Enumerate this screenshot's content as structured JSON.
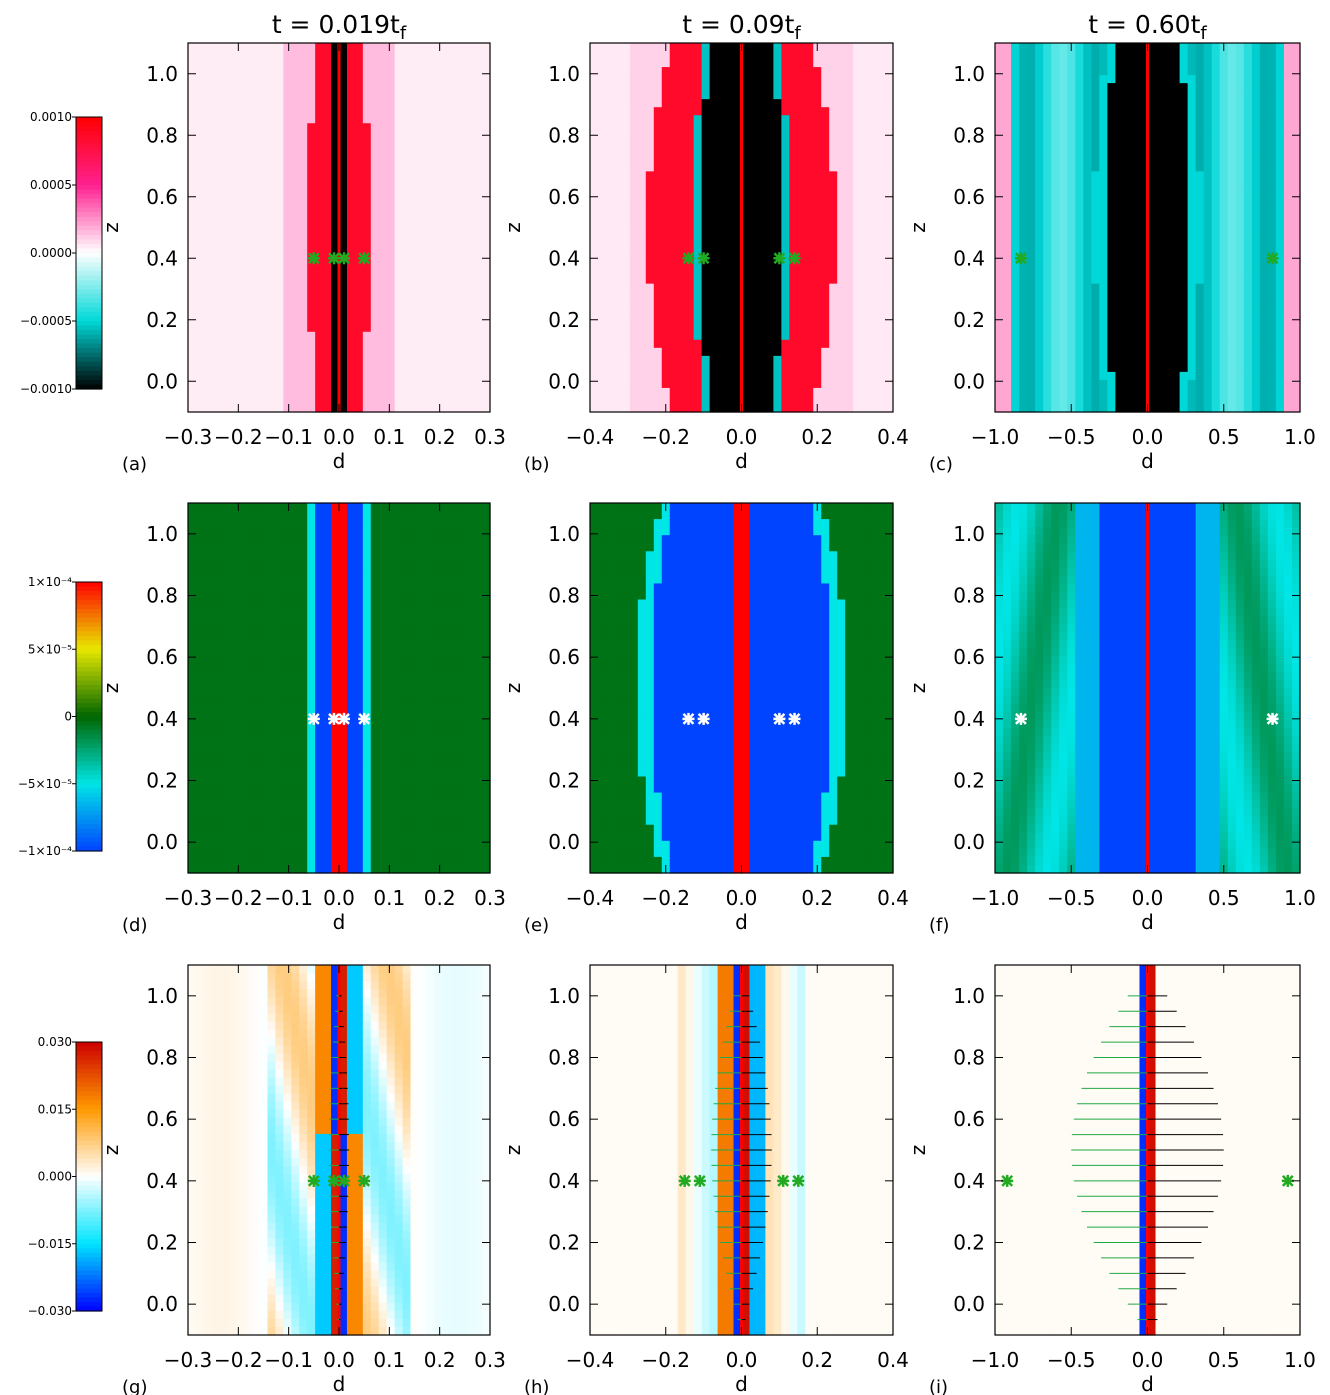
{
  "chart_data": {
    "type": "heatmap",
    "column_titles": [
      {
        "lead": "t = 0.019t",
        "sub": "f"
      },
      {
        "lead": "t = 0.09t",
        "sub": "f"
      },
      {
        "lead": "t = 0.60t",
        "sub": "f"
      }
    ],
    "colorbars": [
      {
        "colormap": "black-cyan-white-pink-red",
        "colors": [
          "#000000",
          "#00d8d8",
          "#ffffff",
          "#ff2090",
          "#ff0000"
        ],
        "range": [
          -0.001,
          0.001
        ],
        "tick_values": [
          0.001,
          0.0005,
          0.0,
          -0.0005,
          -0.001
        ],
        "tick_labels": [
          "0.0010",
          "0.0005",
          "0.0000",
          "−0.0005",
          "−0.0010"
        ]
      },
      {
        "colormap": "blue-cyan-green-yellow-red",
        "colors": [
          "#0044ff",
          "#00e5e5",
          "#006600",
          "#e8e800",
          "#ff0000"
        ],
        "range": [
          -0.0001,
          0.0001
        ],
        "tick_values": [
          0.0001,
          5e-05,
          0,
          -5e-05,
          -0.0001
        ],
        "tick_labels": [
          "1×10⁻⁴",
          "5×10⁻⁵",
          "0",
          "−5×10⁻⁵",
          "−1×10⁻⁴"
        ]
      },
      {
        "colormap": "blue-cyan-white-orange-red",
        "colors": [
          "#0000ff",
          "#00e5ff",
          "#ffffff",
          "#ff9a00",
          "#cc0000"
        ],
        "range": [
          -0.03,
          0.03
        ],
        "tick_values": [
          0.03,
          0.015,
          0.0,
          -0.015,
          -0.03
        ],
        "tick_labels": [
          "0.030",
          "0.015",
          "0.000",
          "−0.015",
          "−0.030"
        ]
      }
    ],
    "panels": [
      {
        "tag": "(a)",
        "row": 0,
        "col": 0,
        "xlim": [
          -0.3,
          0.3
        ],
        "ylim": [
          -0.1,
          1.1
        ],
        "xticks": [
          -0.3,
          -0.2,
          -0.1,
          0.0,
          0.1,
          0.2,
          0.3
        ],
        "yticks": [
          0.0,
          0.2,
          0.4,
          0.6,
          0.8,
          1.0
        ],
        "xlabel": "d",
        "ylabel": "z",
        "marker_x": [
          -0.05,
          -0.01,
          0.01,
          0.05
        ],
        "marker_z": 0.4
      },
      {
        "tag": "(b)",
        "row": 0,
        "col": 1,
        "xlim": [
          -0.4,
          0.4
        ],
        "ylim": [
          -0.1,
          1.1
        ],
        "xticks": [
          -0.4,
          -0.2,
          0.0,
          0.2,
          0.4
        ],
        "yticks": [
          0.0,
          0.2,
          0.4,
          0.6,
          0.8,
          1.0
        ],
        "xlabel": "d",
        "ylabel": "z",
        "marker_x": [
          -0.14,
          -0.1,
          0.1,
          0.14
        ],
        "marker_z": 0.4
      },
      {
        "tag": "(c)",
        "row": 0,
        "col": 2,
        "xlim": [
          -1.0,
          1.0
        ],
        "ylim": [
          -0.1,
          1.1
        ],
        "xticks": [
          -1.0,
          -0.5,
          0.0,
          0.5,
          1.0
        ],
        "yticks": [
          0.0,
          0.2,
          0.4,
          0.6,
          0.8,
          1.0
        ],
        "xlabel": "d",
        "ylabel": "z",
        "marker_x": [
          -0.83,
          0.82
        ],
        "marker_z": 0.4
      },
      {
        "tag": "(d)",
        "row": 1,
        "col": 0,
        "xlim": [
          -0.3,
          0.3
        ],
        "ylim": [
          -0.1,
          1.1
        ],
        "xticks": [
          -0.3,
          -0.2,
          -0.1,
          0.0,
          0.1,
          0.2,
          0.3
        ],
        "yticks": [
          0.0,
          0.2,
          0.4,
          0.6,
          0.8,
          1.0
        ],
        "xlabel": "d",
        "ylabel": "z",
        "marker_x": [
          -0.05,
          -0.01,
          0.01,
          0.05
        ],
        "marker_z": 0.4
      },
      {
        "tag": "(e)",
        "row": 1,
        "col": 1,
        "xlim": [
          -0.4,
          0.4
        ],
        "ylim": [
          -0.1,
          1.1
        ],
        "xticks": [
          -0.4,
          -0.2,
          0.0,
          0.2,
          0.4
        ],
        "yticks": [
          0.0,
          0.2,
          0.4,
          0.6,
          0.8,
          1.0
        ],
        "xlabel": "d",
        "ylabel": "z",
        "marker_x": [
          -0.14,
          -0.1,
          0.1,
          0.14
        ],
        "marker_z": 0.4
      },
      {
        "tag": "(f)",
        "row": 1,
        "col": 2,
        "xlim": [
          -1.0,
          1.0
        ],
        "ylim": [
          -0.1,
          1.1
        ],
        "xticks": [
          -1.0,
          -0.5,
          0.0,
          0.5,
          1.0
        ],
        "yticks": [
          0.0,
          0.2,
          0.4,
          0.6,
          0.8,
          1.0
        ],
        "xlabel": "d",
        "ylabel": "z",
        "marker_x": [
          -0.83,
          0.82
        ],
        "marker_z": 0.4
      },
      {
        "tag": "(g)",
        "row": 2,
        "col": 0,
        "xlim": [
          -0.3,
          0.3
        ],
        "ylim": [
          -0.1,
          1.1
        ],
        "xticks": [
          -0.3,
          -0.2,
          -0.1,
          0.0,
          0.1,
          0.2,
          0.3
        ],
        "yticks": [
          0.0,
          0.2,
          0.4,
          0.6,
          0.8,
          1.0
        ],
        "xlabel": "d",
        "ylabel": "z",
        "marker_x": [
          -0.05,
          -0.01,
          0.01,
          0.05
        ],
        "marker_z": 0.4
      },
      {
        "tag": "(h)",
        "row": 2,
        "col": 1,
        "xlim": [
          -0.4,
          0.4
        ],
        "ylim": [
          -0.1,
          1.1
        ],
        "xticks": [
          -0.4,
          -0.2,
          0.0,
          0.2,
          0.4
        ],
        "yticks": [
          0.0,
          0.2,
          0.4,
          0.6,
          0.8,
          1.0
        ],
        "xlabel": "d",
        "ylabel": "z",
        "marker_x": [
          -0.15,
          -0.11,
          0.11,
          0.15
        ],
        "marker_z": 0.4
      },
      {
        "tag": "(i)",
        "row": 2,
        "col": 2,
        "xlim": [
          -1.0,
          1.0
        ],
        "ylim": [
          -0.1,
          1.1
        ],
        "xticks": [
          -1.0,
          -0.5,
          0.0,
          0.5,
          1.0
        ],
        "yticks": [
          0.0,
          0.2,
          0.4,
          0.6,
          0.8,
          1.0
        ],
        "xlabel": "d",
        "ylabel": "z",
        "marker_x": [
          -0.92,
          0.92
        ],
        "marker_z": 0.4
      }
    ],
    "marker_colors": [
      "#22aa22",
      "#ffffff",
      "#22aa22"
    ],
    "vector_colors": {
      "left": "#22aa44",
      "right": "#000000"
    }
  }
}
